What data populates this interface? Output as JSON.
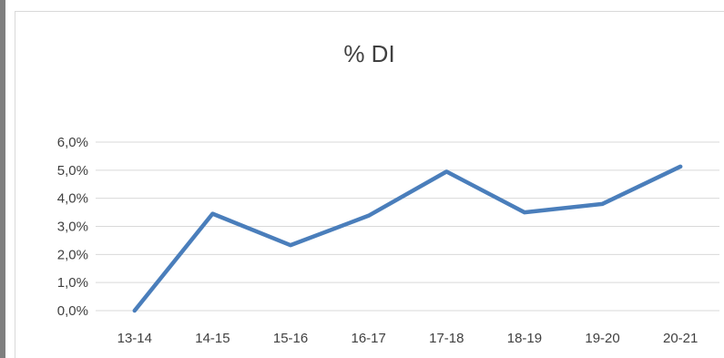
{
  "chart_data": {
    "type": "line",
    "title": "% DI",
    "xlabel": "",
    "ylabel": "",
    "categories": [
      "13-14",
      "14-15",
      "15-16",
      "16-17",
      "17-18",
      "18-19",
      "19-20",
      "20-21"
    ],
    "series": [
      {
        "values": [
          0.0,
          3.45,
          2.33,
          3.38,
          4.95,
          3.5,
          3.8,
          5.13
        ]
      }
    ],
    "ylim": [
      0,
      6
    ],
    "yticks": [
      "0,0%",
      "1,0%",
      "2,0%",
      "3,0%",
      "4,0%",
      "5,0%",
      "6,0%"
    ],
    "grid": true,
    "legend": "none",
    "colors": {
      "line": "#4a7ebb",
      "grid": "#d9d9d9",
      "text": "#404040"
    }
  }
}
